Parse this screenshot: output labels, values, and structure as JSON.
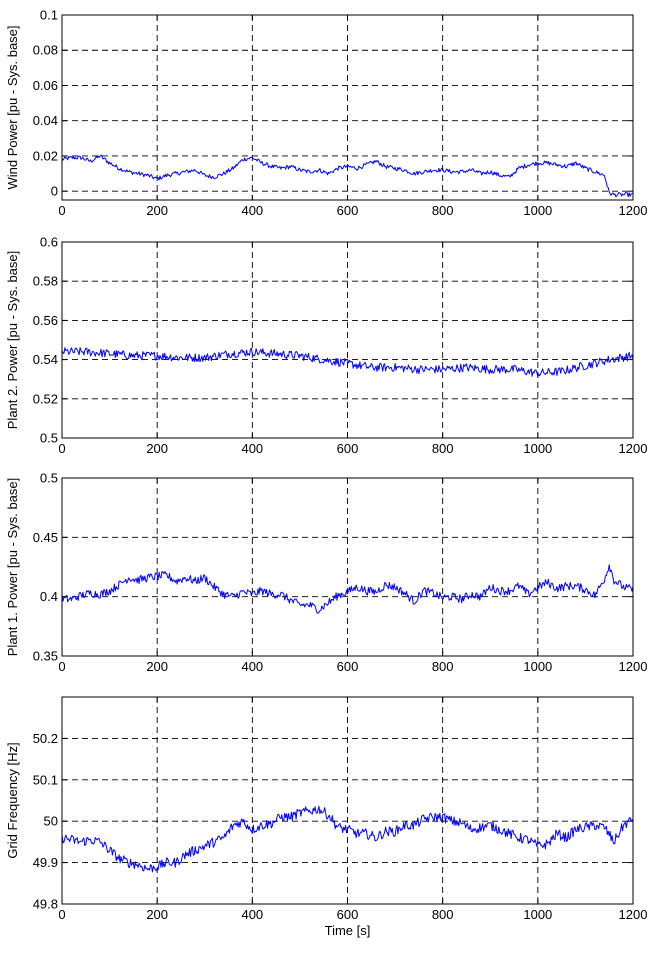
{
  "chart_data": [
    {
      "type": "line",
      "ylabel": "Wind Power [pu - Sys. base]",
      "xlabel": "",
      "xlim": [
        0,
        1200
      ],
      "ylim": [
        -0.005,
        0.1
      ],
      "xticks": [
        0,
        200,
        400,
        600,
        800,
        1000,
        1200
      ],
      "xtick_labels": [
        "0",
        "200",
        "400",
        "600",
        "800",
        "1000",
        "1200"
      ],
      "yticks": [
        0,
        0.02,
        0.04,
        0.06,
        0.08,
        0.1
      ],
      "ytick_labels": [
        "0",
        "0.02",
        "0.04",
        "0.06",
        "0.08",
        "0.1"
      ],
      "grid": true,
      "color": "#0000ff",
      "series": [
        {
          "x": [
            0,
            20,
            40,
            60,
            80,
            100,
            120,
            140,
            160,
            180,
            200,
            220,
            240,
            260,
            280,
            300,
            320,
            340,
            360,
            380,
            400,
            420,
            440,
            460,
            480,
            500,
            520,
            540,
            560,
            580,
            600,
            620,
            640,
            660,
            680,
            700,
            720,
            740,
            760,
            780,
            800,
            820,
            840,
            860,
            880,
            900,
            920,
            940,
            960,
            980,
            1000,
            1020,
            1040,
            1060,
            1080,
            1100,
            1120,
            1140,
            1150,
            1160,
            1180,
            1200
          ],
          "y": [
            0.018,
            0.019,
            0.019,
            0.017,
            0.02,
            0.016,
            0.013,
            0.011,
            0.01,
            0.009,
            0.007,
            0.009,
            0.01,
            0.011,
            0.012,
            0.009,
            0.008,
            0.01,
            0.013,
            0.018,
            0.019,
            0.016,
            0.014,
            0.013,
            0.014,
            0.012,
            0.011,
            0.012,
            0.01,
            0.013,
            0.014,
            0.013,
            0.015,
            0.017,
            0.014,
            0.013,
            0.012,
            0.01,
            0.011,
            0.012,
            0.012,
            0.011,
            0.011,
            0.012,
            0.01,
            0.011,
            0.009,
            0.008,
            0.013,
            0.015,
            0.016,
            0.016,
            0.015,
            0.014,
            0.016,
            0.013,
            0.011,
            0.009,
            -0.001,
            -0.002,
            -0.002,
            -0.002
          ]
        }
      ]
    },
    {
      "type": "line",
      "ylabel": "Plant 2. Power [pu - Sys. base]",
      "xlabel": "",
      "xlim": [
        0,
        1200
      ],
      "ylim": [
        0.5,
        0.6
      ],
      "xticks": [
        0,
        200,
        400,
        600,
        800,
        1000,
        1200
      ],
      "xtick_labels": [
        "0",
        "200",
        "400",
        "600",
        "800",
        "1000",
        "1200"
      ],
      "yticks": [
        0.5,
        0.52,
        0.54,
        0.56,
        0.58,
        0.6
      ],
      "ytick_labels": [
        "0.5",
        "0.52",
        "0.54",
        "0.56",
        "0.58",
        "0.6"
      ],
      "grid": true,
      "color": "#0000ff",
      "series": [
        {
          "x": [
            0,
            50,
            100,
            150,
            200,
            250,
            300,
            350,
            400,
            450,
            500,
            550,
            600,
            650,
            700,
            750,
            800,
            850,
            900,
            950,
            1000,
            1050,
            1100,
            1150,
            1200
          ],
          "y": [
            0.544,
            0.544,
            0.543,
            0.542,
            0.542,
            0.541,
            0.541,
            0.543,
            0.544,
            0.543,
            0.542,
            0.54,
            0.538,
            0.536,
            0.536,
            0.535,
            0.535,
            0.536,
            0.535,
            0.535,
            0.533,
            0.534,
            0.537,
            0.54,
            0.542
          ]
        }
      ]
    },
    {
      "type": "line",
      "ylabel": "Plant 1. Power [pu - Sys. base]",
      "xlabel": "",
      "xlim": [
        0,
        1200
      ],
      "ylim": [
        0.35,
        0.5
      ],
      "xticks": [
        0,
        200,
        400,
        600,
        800,
        1000,
        1200
      ],
      "xtick_labels": [
        "0",
        "200",
        "400",
        "600",
        "800",
        "1000",
        "1200"
      ],
      "yticks": [
        0.35,
        0.4,
        0.45,
        0.5
      ],
      "ytick_labels": [
        "0.35",
        "0.4",
        "0.45",
        "0.5"
      ],
      "grid": true,
      "color": "#0000ff",
      "series": [
        {
          "x": [
            0,
            20,
            40,
            60,
            80,
            100,
            120,
            140,
            160,
            180,
            200,
            220,
            240,
            260,
            280,
            300,
            320,
            340,
            360,
            380,
            400,
            420,
            440,
            460,
            480,
            500,
            520,
            540,
            560,
            580,
            600,
            620,
            640,
            660,
            680,
            700,
            720,
            740,
            760,
            780,
            800,
            820,
            840,
            860,
            880,
            900,
            920,
            940,
            960,
            980,
            1000,
            1020,
            1040,
            1060,
            1080,
            1100,
            1120,
            1140,
            1150,
            1160,
            1180,
            1200
          ],
          "y": [
            0.398,
            0.398,
            0.401,
            0.403,
            0.402,
            0.405,
            0.41,
            0.416,
            0.414,
            0.416,
            0.417,
            0.418,
            0.413,
            0.416,
            0.413,
            0.416,
            0.408,
            0.402,
            0.4,
            0.404,
            0.402,
            0.405,
            0.402,
            0.402,
            0.397,
            0.393,
            0.393,
            0.389,
            0.395,
            0.401,
            0.404,
            0.408,
            0.405,
            0.404,
            0.41,
            0.408,
            0.403,
            0.396,
            0.405,
            0.403,
            0.399,
            0.4,
            0.398,
            0.402,
            0.4,
            0.408,
            0.405,
            0.405,
            0.409,
            0.402,
            0.408,
            0.412,
            0.407,
            0.409,
            0.409,
            0.406,
            0.401,
            0.415,
            0.427,
            0.414,
            0.408,
            0.406
          ]
        }
      ]
    },
    {
      "type": "line",
      "ylabel": "Grid Frequency [Hz]",
      "xlabel": "Time [s]",
      "xlim": [
        0,
        1200
      ],
      "ylim": [
        49.8,
        50.3
      ],
      "xticks": [
        0,
        200,
        400,
        600,
        800,
        1000,
        1200
      ],
      "xtick_labels": [
        "0",
        "200",
        "400",
        "600",
        "800",
        "1000",
        "1200"
      ],
      "yticks": [
        49.8,
        49.9,
        50,
        50.1,
        50.2
      ],
      "ytick_labels": [
        "49.8",
        "49.9",
        "50",
        "50.1",
        "50.2"
      ],
      "grid": true,
      "color": "#0000ff",
      "series": [
        {
          "x": [
            0,
            20,
            40,
            60,
            80,
            100,
            120,
            140,
            160,
            180,
            200,
            220,
            240,
            260,
            280,
            300,
            320,
            340,
            360,
            380,
            400,
            420,
            440,
            460,
            480,
            500,
            520,
            540,
            560,
            580,
            600,
            620,
            640,
            660,
            680,
            700,
            720,
            740,
            760,
            780,
            800,
            820,
            840,
            860,
            880,
            900,
            920,
            940,
            960,
            980,
            1000,
            1020,
            1040,
            1060,
            1080,
            1100,
            1120,
            1140,
            1160,
            1180,
            1200
          ],
          "y": [
            49.96,
            49.955,
            49.95,
            49.955,
            49.95,
            49.93,
            49.91,
            49.9,
            49.895,
            49.885,
            49.89,
            49.9,
            49.9,
            49.92,
            49.93,
            49.94,
            49.95,
            49.96,
            49.99,
            50,
            49.98,
            49.99,
            49.995,
            50.01,
            50.01,
            50.02,
            50.025,
            50.03,
            50.015,
            49.985,
            49.98,
            49.97,
            49.97,
            49.96,
            49.975,
            49.975,
            49.99,
            49.99,
            50.005,
            50.01,
            50.01,
            50,
            49.995,
            49.98,
            49.985,
            49.99,
            49.98,
            49.97,
            49.96,
            49.955,
            49.94,
            49.945,
            49.97,
            49.96,
            49.98,
            49.985,
            49.99,
            49.985,
            49.95,
            49.99,
            50.005
          ]
        }
      ]
    }
  ]
}
